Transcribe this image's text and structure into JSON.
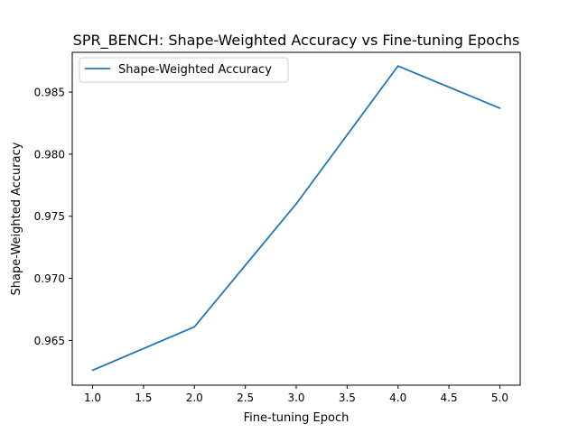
{
  "chart_data": {
    "type": "line",
    "title": "SPR_BENCH: Shape-Weighted Accuracy vs Fine-tuning Epochs",
    "xlabel": "Fine-tuning Epoch",
    "ylabel": "Shape-Weighted Accuracy",
    "xlim": [
      0.8,
      5.2
    ],
    "ylim": [
      0.9614,
      0.9882
    ],
    "xticks": [
      "1.0",
      "1.5",
      "2.0",
      "2.5",
      "3.0",
      "3.5",
      "4.0",
      "4.5",
      "5.0"
    ],
    "yticks": [
      "0.965",
      "0.970",
      "0.975",
      "0.980",
      "0.985"
    ],
    "grid": false,
    "legend_position": "upper-left",
    "series": [
      {
        "name": "Shape-Weighted Accuracy",
        "color": "#1f77b4",
        "x": [
          1,
          2,
          3,
          4,
          5
        ],
        "y": [
          0.9626,
          0.9661,
          0.976,
          0.9871,
          0.9837
        ]
      }
    ]
  }
}
